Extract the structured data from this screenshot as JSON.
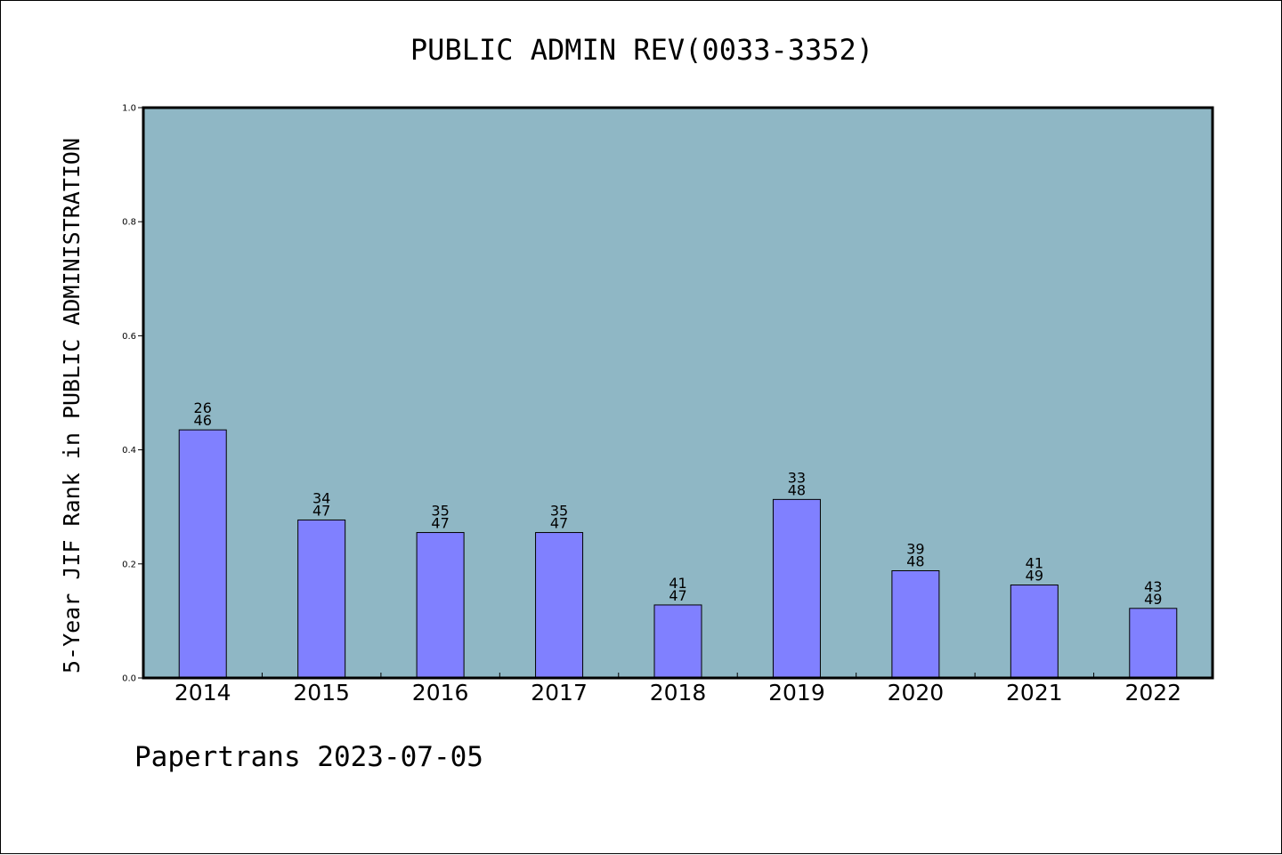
{
  "chart_data": {
    "type": "bar",
    "title": "PUBLIC ADMIN REV(0033-3352)",
    "ylabel": "5-Year JIF Rank in PUBLIC ADMINISTRATION",
    "xlabel": "",
    "ylim": [
      0,
      1.0
    ],
    "yticks": [
      "0.0",
      "0.2",
      "0.4",
      "0.6",
      "0.8",
      "1.0"
    ],
    "categories": [
      "2014",
      "2015",
      "2016",
      "2017",
      "2018",
      "2019",
      "2020",
      "2021",
      "2022"
    ],
    "values": [
      0.435,
      0.277,
      0.255,
      0.255,
      0.128,
      0.313,
      0.188,
      0.163,
      0.122
    ],
    "labels": [
      [
        "26",
        "46"
      ],
      [
        "34",
        "47"
      ],
      [
        "35",
        "47"
      ],
      [
        "35",
        "47"
      ],
      [
        "41",
        "47"
      ],
      [
        "33",
        "48"
      ],
      [
        "39",
        "48"
      ],
      [
        "41",
        "49"
      ],
      [
        "43",
        "49"
      ]
    ],
    "grid": false,
    "colors": {
      "plot_bg": "#8fb7c5",
      "bar": "#8080ff",
      "bar_edge": "#000000"
    }
  },
  "footer": {
    "text": "Papertrans 2023-07-05"
  }
}
